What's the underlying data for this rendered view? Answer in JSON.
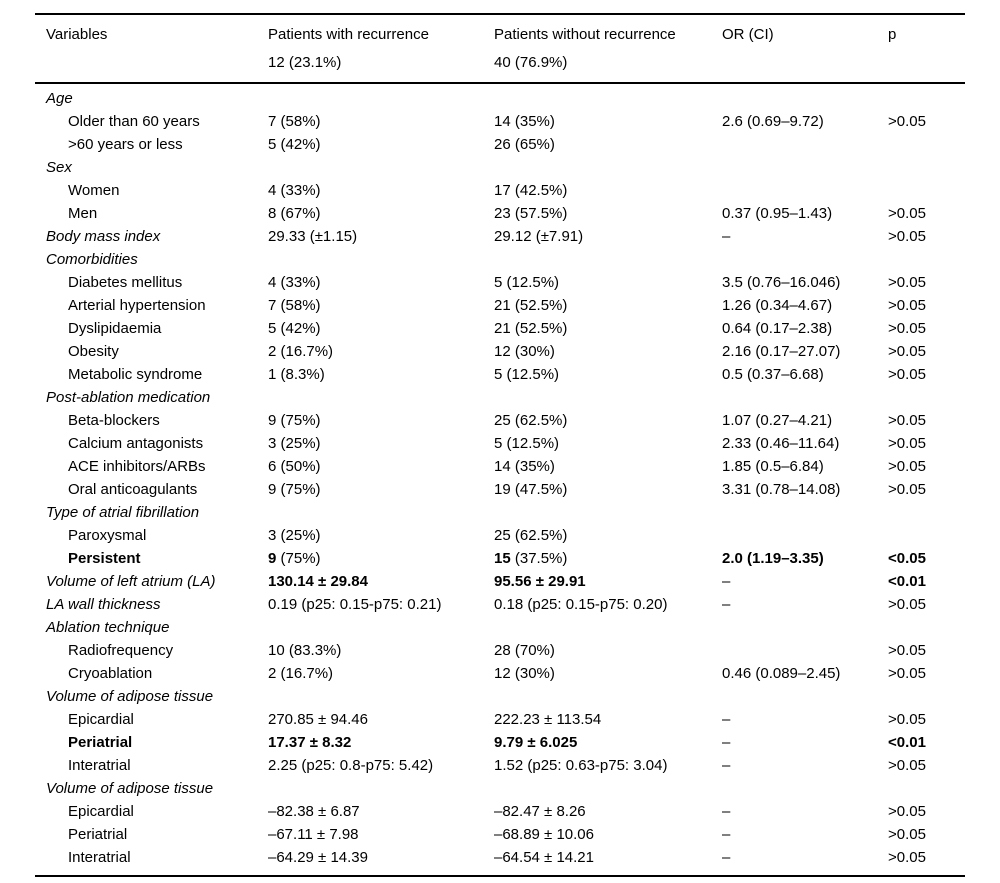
{
  "table": {
    "header": {
      "col1": {
        "line1": "Variables",
        "line2": ""
      },
      "col2": {
        "line1": "Patients with recurrence",
        "line2": "12 (23.1%)"
      },
      "col3": {
        "line1": "Patients without recurrence",
        "line2": "40 (76.9%)"
      },
      "col4": {
        "line1": "OR (CI)",
        "line2": ""
      },
      "col5": {
        "line1": "p",
        "line2": ""
      }
    },
    "rows": [
      {
        "label": "Age",
        "italic": true,
        "cells": [
          "",
          "",
          "",
          ""
        ]
      },
      {
        "label": "Older than 60 years",
        "indent": true,
        "cells": [
          "7 (58%)",
          "14 (35%)",
          "2.6 (0.69–9.72)",
          ">0.05"
        ]
      },
      {
        "label": ">60 years or less",
        "indent": true,
        "cells": [
          "5 (42%)",
          "26 (65%)",
          "",
          ""
        ]
      },
      {
        "label": "Sex",
        "italic": true,
        "cells": [
          "",
          "",
          "",
          ""
        ]
      },
      {
        "label": "Women",
        "indent": true,
        "cells": [
          "4 (33%)",
          "17 (42.5%)",
          "",
          ""
        ]
      },
      {
        "label": "Men",
        "indent": true,
        "cells": [
          "8 (67%)",
          "23 (57.5%)",
          "0.37 (0.95–1.43)",
          ">0.05"
        ]
      },
      {
        "label": "Body mass index",
        "italic": true,
        "cells": [
          "29.33 (±1.15)",
          "29.12 (±7.91)",
          "–",
          ">0.05"
        ]
      },
      {
        "label": "Comorbidities",
        "italic": true,
        "cells": [
          "",
          "",
          "",
          ""
        ]
      },
      {
        "label": "Diabetes mellitus",
        "indent": true,
        "cells": [
          "4 (33%)",
          "5 (12.5%)",
          "3.5 (0.76–16.046)",
          ">0.05"
        ]
      },
      {
        "label": "Arterial hypertension",
        "indent": true,
        "cells": [
          "7 (58%)",
          "21 (52.5%)",
          "1.26 (0.34–4.67)",
          ">0.05"
        ]
      },
      {
        "label": "Dyslipidaemia",
        "indent": true,
        "cells": [
          "5 (42%)",
          "21 (52.5%)",
          "0.64 (0.17–2.38)",
          ">0.05"
        ]
      },
      {
        "label": "Obesity",
        "indent": true,
        "cells": [
          "2 (16.7%)",
          "12 (30%)",
          "2.16 (0.17–27.07)",
          ">0.05"
        ]
      },
      {
        "label": "Metabolic syndrome",
        "indent": true,
        "cells": [
          "1 (8.3%)",
          "5 (12.5%)",
          "0.5 (0.37–6.68)",
          ">0.05"
        ]
      },
      {
        "label": "Post-ablation medication",
        "italic": true,
        "cells": [
          "",
          "",
          "",
          ""
        ]
      },
      {
        "label": "Beta-blockers",
        "indent": true,
        "cells": [
          "9 (75%)",
          "25 (62.5%)",
          "1.07 (0.27–4.21)",
          ">0.05"
        ]
      },
      {
        "label": "Calcium antagonists",
        "indent": true,
        "cells": [
          "3 (25%)",
          "5 (12.5%)",
          "2.33 (0.46–11.64)",
          ">0.05"
        ]
      },
      {
        "label": "ACE inhibitors/ARBs",
        "indent": true,
        "cells": [
          "6 (50%)",
          "14 (35%)",
          "1.85 (0.5–6.84)",
          ">0.05"
        ]
      },
      {
        "label": "Oral anticoagulants",
        "indent": true,
        "cells": [
          "9 (75%)",
          "19 (47.5%)",
          "3.31 (0.78–14.08)",
          ">0.05"
        ]
      },
      {
        "label": "Type of atrial fibrillation",
        "italic": true,
        "cells": [
          "",
          "",
          "",
          ""
        ]
      },
      {
        "label": "Paroxysmal",
        "indent": true,
        "cells": [
          "3 (25%)",
          "25 (62.5%)",
          "",
          ""
        ]
      },
      {
        "label": "**Persistent**",
        "indent": true,
        "cells": [
          "**9** (75%)",
          "**15** (37.5%)",
          "**2.0 (1.19–3.35)**",
          "**<0.05**"
        ]
      },
      {
        "label": "Volume of left atrium (LA)",
        "italic": true,
        "cells": [
          "**130.14 ± 29.84**",
          "**95.56 ± 29.91**",
          "–",
          "**<0.01**"
        ]
      },
      {
        "label": "LA wall thickness",
        "italic": true,
        "cells": [
          "0.19 (p25: 0.15-p75: 0.21)",
          "0.18 (p25: 0.15-p75: 0.20)",
          "–",
          ">0.05"
        ]
      },
      {
        "label": "Ablation technique",
        "italic": true,
        "cells": [
          "",
          "",
          "",
          ""
        ]
      },
      {
        "label": "Radiofrequency",
        "indent": true,
        "cells": [
          "10 (83.3%)",
          "28 (70%)",
          "",
          ">0.05"
        ]
      },
      {
        "label": "Cryoablation",
        "indent": true,
        "cells": [
          "2 (16.7%)",
          "12 (30%)",
          "0.46 (0.089–2.45)",
          ">0.05"
        ]
      },
      {
        "label": "Volume of adipose tissue",
        "italic": true,
        "cells": [
          "",
          "",
          "",
          ""
        ]
      },
      {
        "label": "Epicardial",
        "indent": true,
        "cells": [
          "270.85 ± 94.46",
          "222.23 ± 113.54",
          "–",
          ">0.05"
        ]
      },
      {
        "label": "**Periatrial**",
        "indent": true,
        "cells": [
          "**17.37 ± 8.32**",
          "**9.79 ± 6.025**",
          "–",
          "**<0.01**"
        ]
      },
      {
        "label": "Interatrial",
        "indent": true,
        "cells": [
          "2.25 (p25: 0.8-p75: 5.42)",
          "1.52 (p25: 0.63-p75: 3.04)",
          "–",
          ">0.05"
        ]
      },
      {
        "label": "Volume of adipose tissue",
        "italic": true,
        "cells": [
          "",
          "",
          "",
          ""
        ]
      },
      {
        "label": "Epicardial",
        "indent": true,
        "cells": [
          "–82.38 ± 6.87",
          "–82.47 ± 8.26",
          "–",
          ">0.05"
        ]
      },
      {
        "label": "Periatrial",
        "indent": true,
        "cells": [
          "–67.11 ± 7.98",
          "–68.89 ± 10.06",
          "–",
          ">0.05"
        ]
      },
      {
        "label": "Interatrial",
        "indent": true,
        "cells": [
          "–64.29 ± 14.39",
          "–64.54 ± 14.21",
          "–",
          ">0.05"
        ]
      }
    ]
  }
}
